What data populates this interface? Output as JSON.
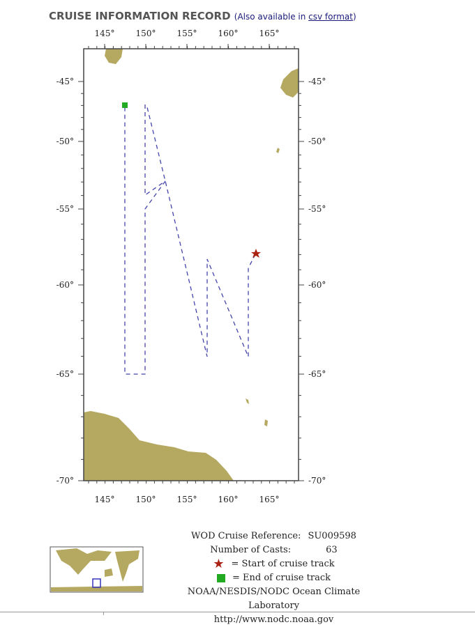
{
  "header": {
    "title": "CRUISE INFORMATION RECORD",
    "also_prefix": "(Also available in ",
    "csv_link": "csv format",
    "also_suffix": ")"
  },
  "map": {
    "lon_ticks": [
      "145°",
      "150°",
      "155°",
      "160°",
      "165°"
    ],
    "lat_ticks": [
      "-45°",
      "-50°",
      "-55°",
      "-60°",
      "-65°",
      "-70°"
    ],
    "colors": {
      "land": "#b5a962",
      "track": "#4444aa",
      "start": "#aa2211",
      "end": "#22aa22"
    }
  },
  "legend": {
    "reference_label": "WOD Cruise Reference:",
    "reference": "SU009598",
    "casts_label": "Number of Casts:",
    "casts": "63",
    "start_label": "= Start of cruise track",
    "end_label": "= End of cruise track",
    "org": "NOAA/NESDIS/NODC Ocean Climate Laboratory",
    "url": "http://www.nodc.noaa.gov"
  }
}
